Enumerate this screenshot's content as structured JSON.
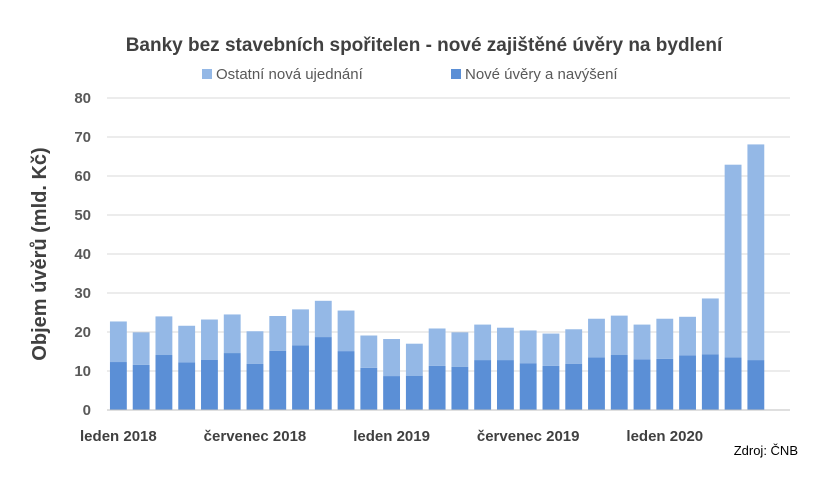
{
  "chart_data": {
    "type": "bar",
    "stacked": true,
    "title": "Banky bez stavebních spořitelen - nové zajištěné úvěry na bydlení",
    "ylabel": "Objem úvěrů (mld. Kč)",
    "xlabel": "",
    "ylim": [
      0,
      80
    ],
    "yticks": [
      0,
      10,
      20,
      30,
      40,
      50,
      60,
      70,
      80
    ],
    "grid": true,
    "legend_position": "top",
    "x_tick_labels": [
      {
        "index": 0,
        "label": "leden 2018"
      },
      {
        "index": 6,
        "label": "červenec 2018"
      },
      {
        "index": 12,
        "label": "leden 2019"
      },
      {
        "index": 18,
        "label": "červenec 2019"
      },
      {
        "index": 24,
        "label": "leden 2020"
      }
    ],
    "categories": [
      "1/2018",
      "2/2018",
      "3/2018",
      "4/2018",
      "5/2018",
      "6/2018",
      "7/2018",
      "8/2018",
      "9/2018",
      "10/2018",
      "11/2018",
      "12/2018",
      "1/2019",
      "2/2019",
      "3/2019",
      "4/2019",
      "5/2019",
      "6/2019",
      "7/2019",
      "8/2019",
      "9/2019",
      "10/2019",
      "11/2019",
      "12/2019",
      "1/2020",
      "2/2020",
      "3/2020",
      "4/2020",
      "5/2020",
      "6/2020"
    ],
    "series": [
      {
        "name": "Nové úvěry a navýšení",
        "color": "#5b8fd6",
        "values": [
          12.3,
          11.6,
          14.1,
          12.2,
          12.9,
          14.6,
          11.8,
          15.2,
          16.6,
          18.7,
          15.1,
          10.8,
          8.7,
          8.8,
          11.3,
          11.1,
          12.8,
          12.8,
          12.0,
          11.3,
          11.8,
          13.5,
          14.1,
          13.0,
          13.1,
          14.0,
          14.3,
          13.5,
          12.8,
          0
        ]
      },
      {
        "name": "Ostatní nová ujednání",
        "color": "#94b8e6",
        "values": [
          10.4,
          8.3,
          9.9,
          9.4,
          10.3,
          9.9,
          8.4,
          8.9,
          9.2,
          9.3,
          10.4,
          8.3,
          9.5,
          8.2,
          9.6,
          8.8,
          9.1,
          8.3,
          8.4,
          8.3,
          8.9,
          9.9,
          10.1,
          8.9,
          10.3,
          9.9,
          14.3,
          49.4,
          55.3,
          0
        ]
      }
    ]
  },
  "source_note": "Zdroj: ČNB"
}
